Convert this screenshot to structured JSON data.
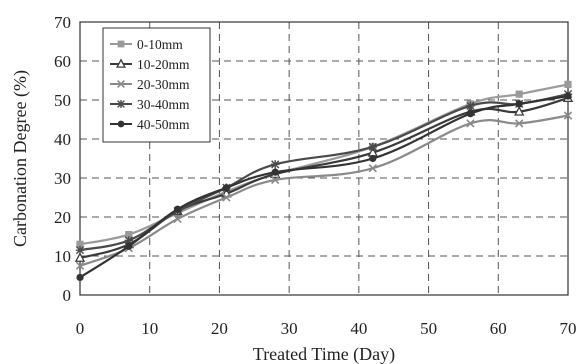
{
  "chart_data": {
    "type": "line",
    "title": "",
    "xlabel": "Treated Time (Day)",
    "ylabel": "Carbonation Degree (%)",
    "xlim": [
      0,
      70
    ],
    "ylim": [
      0,
      70
    ],
    "xticks": [
      0,
      10,
      20,
      30,
      40,
      50,
      60,
      70
    ],
    "yticks": [
      0,
      10,
      20,
      30,
      40,
      50,
      60,
      70
    ],
    "grid": true,
    "legend_position": "top-left",
    "x": [
      0,
      7,
      14,
      21,
      28,
      42,
      56,
      63,
      70
    ],
    "series": [
      {
        "name": "0-10mm",
        "marker": "square",
        "color": "#9a9a9a",
        "values": [
          13.0,
          15.5,
          21.0,
          26.5,
          31.0,
          38.0,
          49.0,
          51.5,
          54.0
        ]
      },
      {
        "name": "10-20mm",
        "marker": "triangle",
        "color": "#3a3a3a",
        "values": [
          9.5,
          13.0,
          21.5,
          26.0,
          31.0,
          36.5,
          47.0,
          47.0,
          50.5
        ]
      },
      {
        "name": "20-30mm",
        "marker": "x",
        "color": "#8a8a8a",
        "values": [
          7.5,
          12.0,
          19.5,
          25.0,
          29.5,
          32.5,
          44.0,
          44.0,
          46.0
        ]
      },
      {
        "name": "30-40mm",
        "marker": "star",
        "color": "#4a4a4a",
        "values": [
          11.5,
          14.0,
          21.5,
          27.5,
          33.5,
          38.0,
          48.5,
          49.0,
          51.5
        ]
      },
      {
        "name": "40-50mm",
        "marker": "circle",
        "color": "#333333",
        "values": [
          4.5,
          12.5,
          22.0,
          27.5,
          31.5,
          35.0,
          46.5,
          49.0,
          51.0
        ]
      }
    ]
  }
}
